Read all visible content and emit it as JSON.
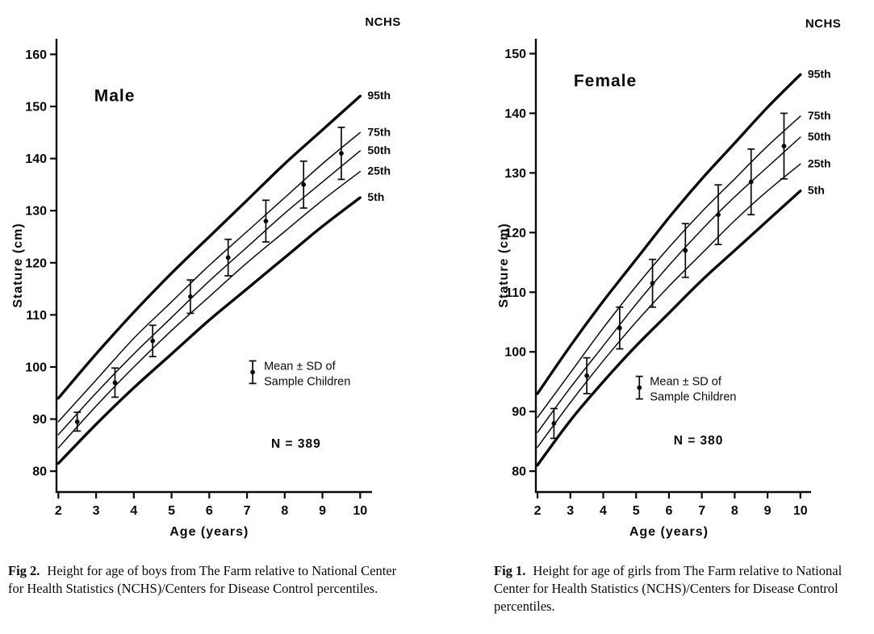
{
  "page": {
    "background": "#ffffff",
    "ink": "#0a0a0a"
  },
  "figures": [
    {
      "key": "male",
      "caption_label": "Fig 2.",
      "caption_text": "Height for age of boys from The Farm relative to National Center for Health Statistics (NCHS)/Centers for Disease Control percentiles."
    },
    {
      "key": "female",
      "caption_label": "Fig 1.",
      "caption_text": "Height for age of girls from The Farm relative to National Center for Health Statistics (NCHS)/Centers for Disease Control percentiles."
    }
  ],
  "chart_data": [
    {
      "type": "line",
      "title": "Male",
      "corner_label": "NCHS",
      "xlabel": "Age (years)",
      "ylabel": "Stature (cm)",
      "xlim": [
        2,
        10
      ],
      "ylim": [
        80,
        160
      ],
      "x_ticks": [
        2,
        3,
        4,
        5,
        6,
        7,
        8,
        9,
        10
      ],
      "y_ticks": [
        80,
        90,
        100,
        110,
        120,
        130,
        140,
        150,
        160
      ],
      "grid": false,
      "legend_position": "inside-lower-right",
      "percentiles": {
        "ages": [
          2,
          3,
          4,
          5,
          6,
          7,
          8,
          9,
          10
        ],
        "series": [
          {
            "name": "95th",
            "bold": true,
            "values": [
              94,
              102.5,
              110.5,
              118,
              125,
              132,
              139,
              145.5,
              152
            ]
          },
          {
            "name": "75th",
            "bold": false,
            "values": [
              89.5,
              97.5,
              105.5,
              112.5,
              119.5,
              126,
              132.5,
              139,
              145
            ]
          },
          {
            "name": "50th",
            "bold": false,
            "values": [
              87,
              95,
              102.5,
              109.5,
              116.5,
              123,
              129.5,
              135.5,
              141.5
            ]
          },
          {
            "name": "25th",
            "bold": false,
            "values": [
              84.5,
              92.5,
              100,
              107,
              113.5,
              120,
              126,
              132,
              137.5
            ]
          },
          {
            "name": "5th",
            "bold": true,
            "values": [
              81.5,
              89,
              96,
              102.5,
              109,
              115,
              121,
              127,
              132.5
            ]
          }
        ]
      },
      "sample": {
        "legend_lines": [
          "Mean ± SD of",
          "Sample Children"
        ],
        "n_label": "N = 389",
        "ages": [
          2.5,
          3.5,
          4.5,
          5.5,
          6.5,
          7.5,
          8.5,
          9.5
        ],
        "mean": [
          89.5,
          97,
          105,
          113.5,
          121,
          128,
          135,
          141
        ],
        "sd": [
          1.8,
          2.8,
          3,
          3.2,
          3.5,
          4,
          4.5,
          5
        ]
      }
    },
    {
      "type": "line",
      "title": "Female",
      "corner_label": "NCHS",
      "xlabel": "Age (years)",
      "ylabel": "Stature (cm)",
      "xlim": [
        2,
        10
      ],
      "ylim": [
        80,
        150
      ],
      "x_ticks": [
        2,
        3,
        4,
        5,
        6,
        7,
        8,
        9,
        10
      ],
      "y_ticks": [
        80,
        90,
        100,
        110,
        120,
        130,
        140,
        150
      ],
      "grid": false,
      "legend_position": "inside-lower-right",
      "percentiles": {
        "ages": [
          2,
          3,
          4,
          5,
          6,
          7,
          8,
          9,
          10
        ],
        "series": [
          {
            "name": "95th",
            "bold": true,
            "values": [
              93,
              101,
              108.5,
              115.5,
              122.5,
              129,
              135,
              141,
              146.5
            ]
          },
          {
            "name": "75th",
            "bold": false,
            "values": [
              89,
              96.5,
              104,
              111,
              117.5,
              123.5,
              129,
              134.5,
              139.5
            ]
          },
          {
            "name": "50th",
            "bold": false,
            "values": [
              86.5,
              94,
              101,
              108,
              114.5,
              120.5,
              126,
              131,
              136
            ]
          },
          {
            "name": "25th",
            "bold": false,
            "values": [
              84,
              91.5,
              98.5,
              105,
              111,
              116.5,
              122,
              127,
              131.5
            ]
          },
          {
            "name": "5th",
            "bold": true,
            "values": [
              81,
              88.5,
              95,
              101,
              106.5,
              112,
              117,
              122,
              127
            ]
          }
        ]
      },
      "sample": {
        "legend_lines": [
          "Mean ± SD of",
          "Sample Children"
        ],
        "n_label": "N = 380",
        "ages": [
          2.5,
          3.5,
          4.5,
          5.5,
          6.5,
          7.5,
          8.5,
          9.5
        ],
        "mean": [
          88,
          96,
          104,
          111.5,
          117,
          123,
          128.5,
          134.5
        ],
        "sd": [
          2.5,
          3,
          3.5,
          4,
          4.5,
          5,
          5.5,
          5.5
        ]
      }
    }
  ]
}
